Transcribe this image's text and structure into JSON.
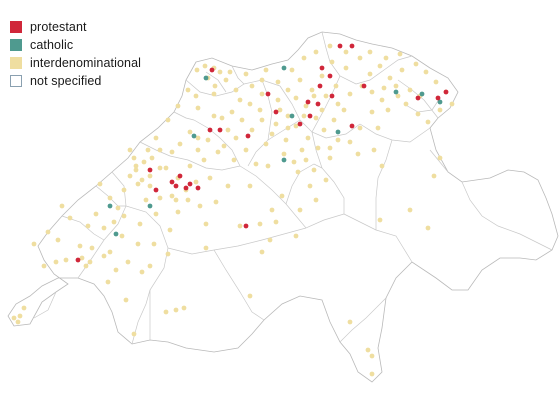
{
  "legend": {
    "items": [
      {
        "key": "protestant",
        "label": "protestant",
        "color": "#d0273a"
      },
      {
        "key": "catholic",
        "label": "catholic",
        "color": "#4f9a8f"
      },
      {
        "key": "interdenominational",
        "label": "interdenominational",
        "color": "#efdea0"
      },
      {
        "key": "not_specified",
        "label": "not specified",
        "color": "#ffffff",
        "border": "#8aa0b0"
      }
    ]
  },
  "colors": {
    "border": "#c9c9c9",
    "outline": "#b8b8b8",
    "lake": "#ffffff"
  }
}
